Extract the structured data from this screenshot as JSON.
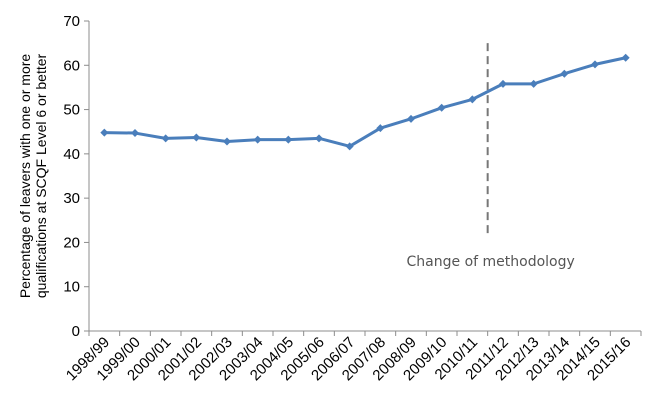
{
  "chart_data": {
    "type": "line",
    "ylabel_lines": [
      "Percentage of leavers with one or more",
      "qualifications at SCQF Level 6 or better"
    ],
    "ylim": [
      0,
      70
    ],
    "yticks": [
      0,
      10,
      20,
      30,
      40,
      50,
      60,
      70
    ],
    "grid": false,
    "categories": [
      "1998/99",
      "1999/00",
      "2000/01",
      "2001/02",
      "2002/03",
      "2003/04",
      "2004/05",
      "2005/06",
      "2006/07",
      "2007/08",
      "2008/09",
      "2009/10",
      "2010/11",
      "2011/12",
      "2012/13",
      "2013/14",
      "2014/15",
      "2015/16"
    ],
    "series": [
      {
        "values": [
          44.8,
          44.7,
          43.5,
          43.7,
          42.8,
          43.2,
          43.2,
          43.5,
          41.7,
          45.8,
          47.9,
          50.4,
          52.3,
          55.8,
          55.8,
          58.1,
          60.2,
          61.7
        ],
        "color": "#4a7ebb"
      }
    ],
    "annotations": [
      {
        "text": "Change of methodology",
        "x": "2010/11",
        "line_style": "dashed",
        "color": "#777777"
      }
    ]
  }
}
